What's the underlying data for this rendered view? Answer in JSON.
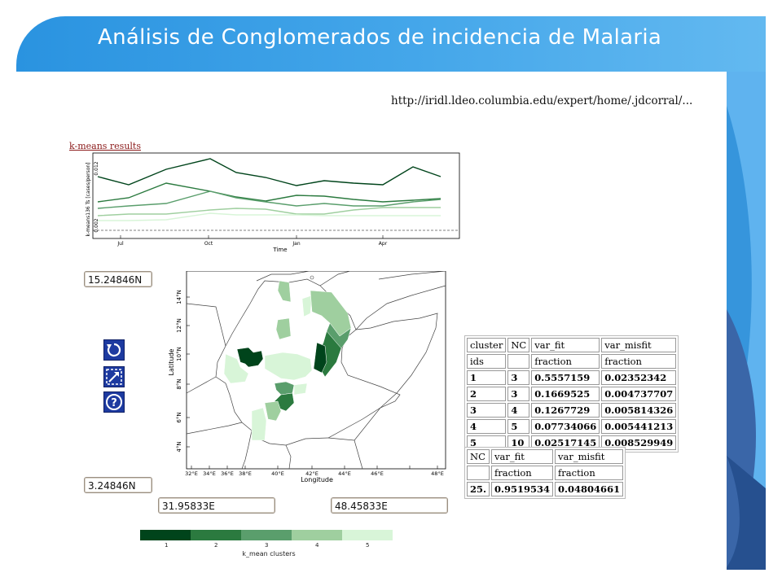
{
  "slide": {
    "title": "Análisis de Conglomerados de incidencia de Malaria",
    "url": "http://iridl.ldeo.columbia.edu/expert/home/.jdcorral/...",
    "link_text": "k-means results"
  },
  "colors": {
    "title_bar": "#3aa0e8",
    "cluster_1": "#00441b",
    "cluster_2": "#2b7a3f",
    "cluster_3": "#5a9e6c",
    "cluster_4": "#9fcf9f",
    "cluster_5": "#d8f5d8"
  },
  "timeseries": {
    "ylabel": "k-means136 Ts [cases/person]",
    "xlabel": "Time",
    "ytick_top": "0.012",
    "ytick_bottom": "0.002",
    "xticks": [
      "Jul",
      "Oct",
      "Jan",
      "Apr"
    ]
  },
  "map_panel": {
    "north": "15.24846N",
    "south": "3.24846N",
    "west": "31.95833E",
    "east": "48.45833E",
    "ylabel": "Latitude",
    "xlabel": "Longitude",
    "yticks": [
      "14°N",
      "12°N",
      "10°N",
      "8°N",
      "6°N",
      "4°N"
    ],
    "xticks": [
      "32°E",
      "34°E",
      "36°E",
      "38°E",
      "40°E",
      "42°E",
      "44°E",
      "46°E",
      "48°E"
    ]
  },
  "tools": [
    {
      "name": "reset-view-icon"
    },
    {
      "name": "zoom-box-icon"
    },
    {
      "name": "help-icon"
    }
  ],
  "cluster_table": {
    "header1": [
      "cluster",
      "NC",
      "var_fit",
      "var_misfit"
    ],
    "header2": [
      "ids",
      "",
      "fraction",
      "fraction"
    ],
    "rows": [
      [
        "1",
        "3",
        "0.5557159",
        "0.02352342"
      ],
      [
        "2",
        "3",
        "0.1669525",
        "0.004737707"
      ],
      [
        "3",
        "4",
        "0.1267729",
        "0.005814326"
      ],
      [
        "4",
        "5",
        "0.07734066",
        "0.005441213"
      ],
      [
        "5",
        "10",
        "0.02517145",
        "0.008529949"
      ]
    ]
  },
  "summary_table": {
    "header1": [
      "NC",
      "var_fit",
      "var_misfit"
    ],
    "header2": [
      "",
      "fraction",
      "fraction"
    ],
    "row": [
      "25.",
      "0.9519534",
      "0.04804661"
    ]
  },
  "legend": {
    "label": "k_mean clusters",
    "ticks": [
      "1",
      "2",
      "3",
      "4",
      "5"
    ]
  }
}
